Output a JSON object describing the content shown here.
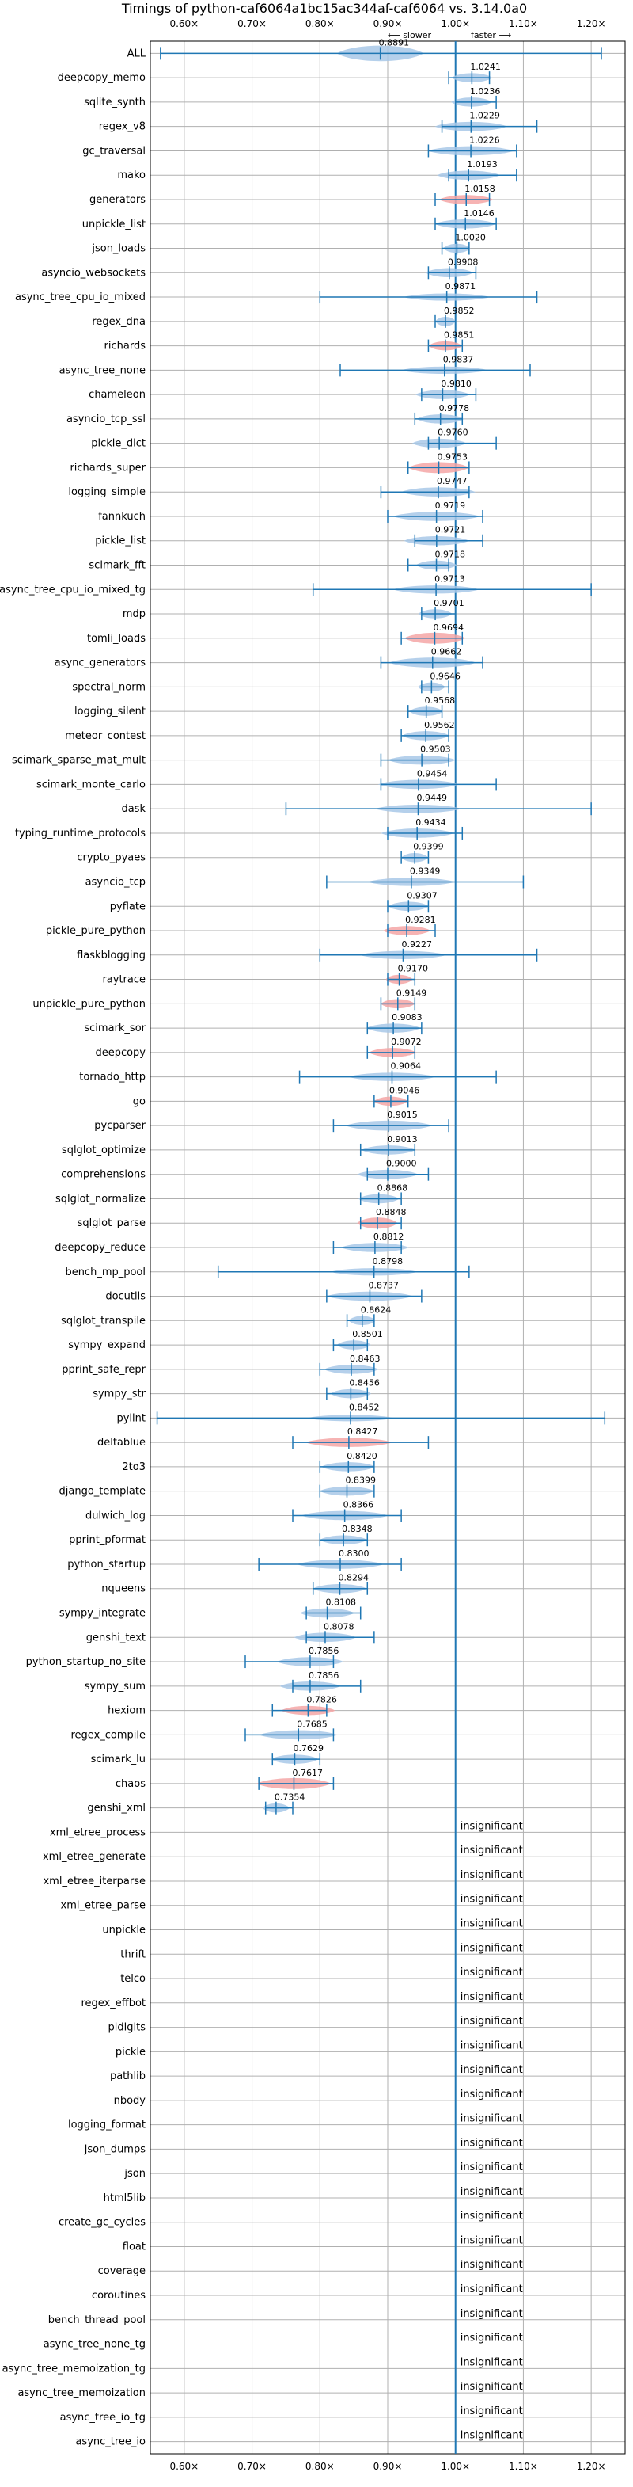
{
  "chart_data": {
    "type": "violin",
    "title": "Timings of python-caf6064a1bc15ac344af-caf6064 vs. 3.14.0a0",
    "xlim": [
      0.55,
      1.25
    ],
    "x_ticks": [
      0.6,
      0.7,
      0.8,
      0.9,
      1.0,
      1.1,
      1.2
    ],
    "x_tick_labels": [
      "0.60×",
      "0.70×",
      "0.80×",
      "0.90×",
      "1.00×",
      "1.10×",
      "1.20×"
    ],
    "slower_label": "⟵ slower",
    "faster_label": "faster ⟶",
    "grid": true,
    "insignificant_label": "insignificant",
    "benchmarks": [
      {
        "name": "ALL",
        "value": 0.8891,
        "label": "0.8891",
        "min": 0.565,
        "max": 1.215,
        "color": "blue",
        "width": 0.85
      },
      {
        "name": "deepcopy_memo",
        "value": 1.0241,
        "label": "1.0241",
        "min": 0.99,
        "max": 1.05,
        "color": "blue",
        "width": 0.5
      },
      {
        "name": "sqlite_synth",
        "value": 1.0236,
        "label": "1.0236",
        "min": 1.0,
        "max": 1.06,
        "color": "blue",
        "width": 0.5
      },
      {
        "name": "regex_v8",
        "value": 1.0229,
        "label": "1.0229",
        "min": 0.98,
        "max": 1.12,
        "color": "blue",
        "width": 0.5
      },
      {
        "name": "gc_traversal",
        "value": 1.0226,
        "label": "1.0226",
        "min": 0.96,
        "max": 1.09,
        "color": "blue",
        "width": 0.5
      },
      {
        "name": "mako",
        "value": 1.0193,
        "label": "1.0193",
        "min": 0.99,
        "max": 1.09,
        "color": "blue",
        "width": 0.5
      },
      {
        "name": "generators",
        "value": 1.0158,
        "label": "1.0158",
        "min": 0.97,
        "max": 1.05,
        "color": "red",
        "width": 0.5
      },
      {
        "name": "unpickle_list",
        "value": 1.0146,
        "label": "1.0146",
        "min": 0.97,
        "max": 1.06,
        "color": "blue",
        "width": 0.5
      },
      {
        "name": "json_loads",
        "value": 1.002,
        "label": "1.0020",
        "min": 0.98,
        "max": 1.02,
        "color": "blue",
        "width": 0.5
      },
      {
        "name": "asyncio_websockets",
        "value": 0.9908,
        "label": "0.9908",
        "min": 0.96,
        "max": 1.03,
        "color": "blue",
        "width": 0.5
      },
      {
        "name": "async_tree_cpu_io_mixed",
        "value": 0.9871,
        "label": "0.9871",
        "min": 0.8,
        "max": 1.12,
        "color": "blue",
        "width": 0.4
      },
      {
        "name": "regex_dna",
        "value": 0.9852,
        "label": "0.9852",
        "min": 0.97,
        "max": 1.0,
        "color": "blue",
        "width": 0.5
      },
      {
        "name": "richards",
        "value": 0.9851,
        "label": "0.9851",
        "min": 0.96,
        "max": 1.01,
        "color": "red",
        "width": 0.5
      },
      {
        "name": "async_tree_none",
        "value": 0.9837,
        "label": "0.9837",
        "min": 0.83,
        "max": 1.11,
        "color": "blue",
        "width": 0.4
      },
      {
        "name": "chameleon",
        "value": 0.981,
        "label": "0.9810",
        "min": 0.95,
        "max": 1.03,
        "color": "blue",
        "width": 0.5
      },
      {
        "name": "asyncio_tcp_ssl",
        "value": 0.9778,
        "label": "0.9778",
        "min": 0.94,
        "max": 1.01,
        "color": "blue",
        "width": 0.5
      },
      {
        "name": "pickle_dict",
        "value": 0.976,
        "label": "0.9760",
        "min": 0.96,
        "max": 1.06,
        "color": "blue",
        "width": 0.5
      },
      {
        "name": "richards_super",
        "value": 0.9753,
        "label": "0.9753",
        "min": 0.93,
        "max": 1.02,
        "color": "red",
        "width": 0.6
      },
      {
        "name": "logging_simple",
        "value": 0.9747,
        "label": "0.9747",
        "min": 0.89,
        "max": 1.02,
        "color": "blue",
        "width": 0.5
      },
      {
        "name": "fannkuch",
        "value": 0.9719,
        "label": "0.9719",
        "min": 0.9,
        "max": 1.04,
        "color": "blue",
        "width": 0.5
      },
      {
        "name": "pickle_list",
        "value": 0.9721,
        "label": "0.9721",
        "min": 0.94,
        "max": 1.04,
        "color": "blue",
        "width": 0.5
      },
      {
        "name": "scimark_fft",
        "value": 0.9718,
        "label": "0.9718",
        "min": 0.93,
        "max": 0.99,
        "color": "blue",
        "width": 0.5
      },
      {
        "name": "async_tree_cpu_io_mixed_tg",
        "value": 0.9713,
        "label": "0.9713",
        "min": 0.79,
        "max": 1.2,
        "color": "blue",
        "width": 0.45
      },
      {
        "name": "mdp",
        "value": 0.9701,
        "label": "0.9701",
        "min": 0.95,
        "max": 1.0,
        "color": "blue",
        "width": 0.5
      },
      {
        "name": "tomli_loads",
        "value": 0.9694,
        "label": "0.9694",
        "min": 0.92,
        "max": 1.01,
        "color": "red",
        "width": 0.6
      },
      {
        "name": "async_generators",
        "value": 0.9662,
        "label": "0.9662",
        "min": 0.89,
        "max": 1.04,
        "color": "blue",
        "width": 0.55
      },
      {
        "name": "spectral_norm",
        "value": 0.9646,
        "label": "0.9646",
        "min": 0.95,
        "max": 0.99,
        "color": "blue",
        "width": 0.5
      },
      {
        "name": "logging_silent",
        "value": 0.9568,
        "label": "0.9568",
        "min": 0.93,
        "max": 0.98,
        "color": "blue",
        "width": 0.5
      },
      {
        "name": "meteor_contest",
        "value": 0.9562,
        "label": "0.9562",
        "min": 0.92,
        "max": 0.99,
        "color": "blue",
        "width": 0.5
      },
      {
        "name": "scimark_sparse_mat_mult",
        "value": 0.9503,
        "label": "0.9503",
        "min": 0.89,
        "max": 0.99,
        "color": "blue",
        "width": 0.5
      },
      {
        "name": "scimark_monte_carlo",
        "value": 0.9454,
        "label": "0.9454",
        "min": 0.89,
        "max": 1.06,
        "color": "blue",
        "width": 0.5
      },
      {
        "name": "dask",
        "value": 0.9449,
        "label": "0.9449",
        "min": 0.75,
        "max": 1.2,
        "color": "blue",
        "width": 0.45
      },
      {
        "name": "typing_runtime_protocols",
        "value": 0.9434,
        "label": "0.9434",
        "min": 0.9,
        "max": 1.01,
        "color": "blue",
        "width": 0.5
      },
      {
        "name": "crypto_pyaes",
        "value": 0.9399,
        "label": "0.9399",
        "min": 0.92,
        "max": 0.96,
        "color": "blue",
        "width": 0.5
      },
      {
        "name": "asyncio_tcp",
        "value": 0.9349,
        "label": "0.9349",
        "min": 0.81,
        "max": 1.1,
        "color": "blue",
        "width": 0.45
      },
      {
        "name": "pyflate",
        "value": 0.9307,
        "label": "0.9307",
        "min": 0.9,
        "max": 0.96,
        "color": "blue",
        "width": 0.5
      },
      {
        "name": "pickle_pure_python",
        "value": 0.9281,
        "label": "0.9281",
        "min": 0.9,
        "max": 0.97,
        "color": "red",
        "width": 0.5
      },
      {
        "name": "flaskblogging",
        "value": 0.9227,
        "label": "0.9227",
        "min": 0.8,
        "max": 1.12,
        "color": "blue",
        "width": 0.45
      },
      {
        "name": "raytrace",
        "value": 0.917,
        "label": "0.9170",
        "min": 0.9,
        "max": 0.94,
        "color": "red",
        "width": 0.5
      },
      {
        "name": "unpickle_pure_python",
        "value": 0.9149,
        "label": "0.9149",
        "min": 0.89,
        "max": 0.94,
        "color": "red",
        "width": 0.5
      },
      {
        "name": "scimark_sor",
        "value": 0.9083,
        "label": "0.9083",
        "min": 0.87,
        "max": 0.95,
        "color": "blue",
        "width": 0.5
      },
      {
        "name": "deepcopy",
        "value": 0.9072,
        "label": "0.9072",
        "min": 0.87,
        "max": 0.94,
        "color": "red",
        "width": 0.5
      },
      {
        "name": "tornado_http",
        "value": 0.9064,
        "label": "0.9064",
        "min": 0.77,
        "max": 1.06,
        "color": "blue",
        "width": 0.45
      },
      {
        "name": "go",
        "value": 0.9046,
        "label": "0.9046",
        "min": 0.88,
        "max": 0.93,
        "color": "red",
        "width": 0.5
      },
      {
        "name": "pycparser",
        "value": 0.9015,
        "label": "0.9015",
        "min": 0.82,
        "max": 0.99,
        "color": "blue",
        "width": 0.55
      },
      {
        "name": "sqlglot_optimize",
        "value": 0.9013,
        "label": "0.9013",
        "min": 0.86,
        "max": 0.94,
        "color": "blue",
        "width": 0.5
      },
      {
        "name": "comprehensions",
        "value": 0.9,
        "label": "0.9000",
        "min": 0.87,
        "max": 0.96,
        "color": "blue",
        "width": 0.5
      },
      {
        "name": "sqlglot_normalize",
        "value": 0.8868,
        "label": "0.8868",
        "min": 0.86,
        "max": 0.92,
        "color": "blue",
        "width": 0.5
      },
      {
        "name": "sqlglot_parse",
        "value": 0.8848,
        "label": "0.8848",
        "min": 0.86,
        "max": 0.92,
        "color": "red",
        "width": 0.6
      },
      {
        "name": "deepcopy_reduce",
        "value": 0.8812,
        "label": "0.8812",
        "min": 0.82,
        "max": 0.92,
        "color": "blue",
        "width": 0.5
      },
      {
        "name": "bench_mp_pool",
        "value": 0.8798,
        "label": "0.8798",
        "min": 0.65,
        "max": 1.02,
        "color": "blue",
        "width": 0.4
      },
      {
        "name": "docutils",
        "value": 0.8737,
        "label": "0.8737",
        "min": 0.81,
        "max": 0.95,
        "color": "blue",
        "width": 0.5
      },
      {
        "name": "sqlglot_transpile",
        "value": 0.8624,
        "label": "0.8624",
        "min": 0.84,
        "max": 0.88,
        "color": "blue",
        "width": 0.5
      },
      {
        "name": "sympy_expand",
        "value": 0.8501,
        "label": "0.8501",
        "min": 0.82,
        "max": 0.87,
        "color": "blue",
        "width": 0.5
      },
      {
        "name": "pprint_safe_repr",
        "value": 0.8463,
        "label": "0.8463",
        "min": 0.8,
        "max": 0.88,
        "color": "blue",
        "width": 0.5
      },
      {
        "name": "sympy_str",
        "value": 0.8456,
        "label": "0.8456",
        "min": 0.81,
        "max": 0.87,
        "color": "blue",
        "width": 0.5
      },
      {
        "name": "pylint",
        "value": 0.8452,
        "label": "0.8452",
        "min": 0.56,
        "max": 1.22,
        "color": "blue",
        "width": 0.35
      },
      {
        "name": "deltablue",
        "value": 0.8427,
        "label": "0.8427",
        "min": 0.76,
        "max": 0.96,
        "color": "red",
        "width": 0.5
      },
      {
        "name": "2to3",
        "value": 0.842,
        "label": "0.8420",
        "min": 0.8,
        "max": 0.88,
        "color": "blue",
        "width": 0.5
      },
      {
        "name": "django_template",
        "value": 0.8399,
        "label": "0.8399",
        "min": 0.8,
        "max": 0.88,
        "color": "blue",
        "width": 0.5
      },
      {
        "name": "dulwich_log",
        "value": 0.8366,
        "label": "0.8366",
        "min": 0.76,
        "max": 0.92,
        "color": "blue",
        "width": 0.5
      },
      {
        "name": "pprint_pformat",
        "value": 0.8348,
        "label": "0.8348",
        "min": 0.8,
        "max": 0.87,
        "color": "blue",
        "width": 0.5
      },
      {
        "name": "python_startup",
        "value": 0.83,
        "label": "0.8300",
        "min": 0.71,
        "max": 0.92,
        "color": "blue",
        "width": 0.5
      },
      {
        "name": "nqueens",
        "value": 0.8294,
        "label": "0.8294",
        "min": 0.79,
        "max": 0.87,
        "color": "blue",
        "width": 0.5
      },
      {
        "name": "sympy_integrate",
        "value": 0.8108,
        "label": "0.8108",
        "min": 0.78,
        "max": 0.86,
        "color": "blue",
        "width": 0.5
      },
      {
        "name": "genshi_text",
        "value": 0.8078,
        "label": "0.8078",
        "min": 0.78,
        "max": 0.88,
        "color": "blue",
        "width": 0.5
      },
      {
        "name": "python_startup_no_site",
        "value": 0.7856,
        "label": "0.7856",
        "min": 0.69,
        "max": 0.82,
        "color": "blue",
        "width": 0.5
      },
      {
        "name": "sympy_sum",
        "value": 0.7856,
        "label": "0.7856",
        "min": 0.76,
        "max": 0.86,
        "color": "blue",
        "width": 0.5
      },
      {
        "name": "hexiom",
        "value": 0.7826,
        "label": "0.7826",
        "min": 0.73,
        "max": 0.81,
        "color": "red",
        "width": 0.5
      },
      {
        "name": "regex_compile",
        "value": 0.7685,
        "label": "0.7685",
        "min": 0.69,
        "max": 0.82,
        "color": "blue",
        "width": 0.5
      },
      {
        "name": "scimark_lu",
        "value": 0.7629,
        "label": "0.7629",
        "min": 0.73,
        "max": 0.8,
        "color": "blue",
        "width": 0.5
      },
      {
        "name": "chaos",
        "value": 0.7617,
        "label": "0.7617",
        "min": 0.71,
        "max": 0.82,
        "color": "red",
        "width": 0.6
      },
      {
        "name": "genshi_xml",
        "value": 0.7354,
        "label": "0.7354",
        "min": 0.72,
        "max": 0.76,
        "color": "blue",
        "width": 0.5
      },
      {
        "name": "xml_etree_process",
        "insignificant": true
      },
      {
        "name": "xml_etree_generate",
        "insignificant": true
      },
      {
        "name": "xml_etree_iterparse",
        "insignificant": true
      },
      {
        "name": "xml_etree_parse",
        "insignificant": true
      },
      {
        "name": "unpickle",
        "insignificant": true
      },
      {
        "name": "thrift",
        "insignificant": true
      },
      {
        "name": "telco",
        "insignificant": true
      },
      {
        "name": "regex_effbot",
        "insignificant": true
      },
      {
        "name": "pidigits",
        "insignificant": true
      },
      {
        "name": "pickle",
        "insignificant": true
      },
      {
        "name": "pathlib",
        "insignificant": true
      },
      {
        "name": "nbody",
        "insignificant": true
      },
      {
        "name": "logging_format",
        "insignificant": true
      },
      {
        "name": "json_dumps",
        "insignificant": true
      },
      {
        "name": "json",
        "insignificant": true
      },
      {
        "name": "html5lib",
        "insignificant": true
      },
      {
        "name": "create_gc_cycles",
        "insignificant": true
      },
      {
        "name": "float",
        "insignificant": true
      },
      {
        "name": "coverage",
        "insignificant": true
      },
      {
        "name": "coroutines",
        "insignificant": true
      },
      {
        "name": "bench_thread_pool",
        "insignificant": true
      },
      {
        "name": "async_tree_none_tg",
        "insignificant": true
      },
      {
        "name": "async_tree_memoization_tg",
        "insignificant": true
      },
      {
        "name": "async_tree_memoization",
        "insignificant": true
      },
      {
        "name": "async_tree_io_tg",
        "insignificant": true
      },
      {
        "name": "async_tree_io",
        "insignificant": true
      }
    ],
    "colors": {
      "blue_fill": "#a8c8e8",
      "red_fill": "#f4a6a6",
      "line": "#1f77b4",
      "grid": "#b0b0b0",
      "text": "#000000"
    }
  }
}
